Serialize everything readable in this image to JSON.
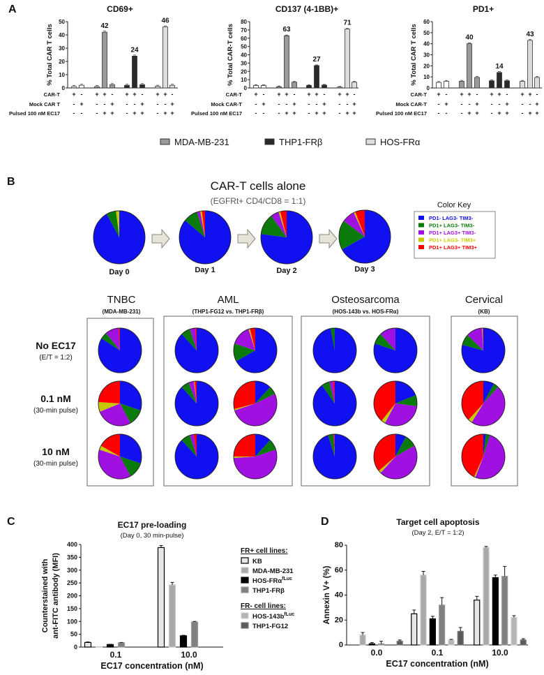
{
  "panel_labels": {
    "a": "A",
    "b": "B",
    "c": "C",
    "d": "D"
  },
  "colors": {
    "ctrl": "#ffffff",
    "mda": "#9a9a9a",
    "thp1": "#2a2a2a",
    "hos": "#dcdcdc",
    "pie": [
      "#1010f0",
      "#0a7a0a",
      "#a010e0",
      "#c8c800",
      "#ff0000"
    ]
  },
  "legend_a": [
    {
      "label": "MDA-MB-231",
      "cat": "mda"
    },
    {
      "label": "THP1-FRβ",
      "cat": "thp1"
    },
    {
      "label": "HOS-FRα",
      "cat": "hos"
    }
  ],
  "panel_b": {
    "title": "CAR-T cells alone",
    "subtitle": "(EGFRt+ CD4/CD8 = 1:1)",
    "days": [
      {
        "label": "Day 0",
        "fractions": [
          0.92,
          0.06,
          0.0,
          0.02,
          0.0
        ]
      },
      {
        "label": "Day 1",
        "fractions": [
          0.86,
          0.09,
          0.02,
          0.01,
          0.02
        ]
      },
      {
        "label": "Day 2",
        "fractions": [
          0.77,
          0.13,
          0.05,
          0.01,
          0.04
        ]
      },
      {
        "label": "Day 3",
        "fractions": [
          0.67,
          0.18,
          0.08,
          0.01,
          0.06
        ]
      }
    ],
    "color_key": {
      "title": "Color Key",
      "items": [
        "PD1- LAG3- TIM3-",
        "PD1+ LAG3- TIM3-",
        "PD1+ LAG3+ TIM3-",
        "PD1+ LAG3- TIM3+",
        "PD1+ LAG3+ TIM3+"
      ]
    },
    "groups": [
      {
        "title": "TNBC",
        "sub": "(MDA-MB-231)"
      },
      {
        "title": "AML",
        "sub": "(THP1-FG12   vs.   THP1-FRβ)"
      },
      {
        "title": "Osteosarcoma",
        "sub": "(HOS-143b   vs.   HOS-FRα)"
      },
      {
        "title": "Cervical",
        "sub": "(KB)"
      }
    ],
    "conditions": [
      {
        "label": "No EC17",
        "sub": "(E/T = 1:2)"
      },
      {
        "label": "0.1 nM",
        "sub": "(30-min pulse)"
      },
      {
        "label": "10 nM",
        "sub": "(30-min pulse)"
      }
    ],
    "pies": [
      [
        [
          0.84,
          0.05,
          0.1,
          0.0,
          0.01
        ],
        [
          0.88,
          0.07,
          0.04,
          0.0,
          0.01
        ],
        [
          0.67,
          0.13,
          0.15,
          0.01,
          0.04
        ],
        [
          0.97,
          0.03,
          0.0,
          0.0,
          0.0
        ],
        [
          0.8,
          0.08,
          0.12,
          0.0,
          0.0
        ],
        [
          0.79,
          0.08,
          0.12,
          0.005,
          0.005
        ]
      ],
      [
        [
          0.3,
          0.12,
          0.27,
          0.07,
          0.24
        ],
        [
          0.88,
          0.06,
          0.04,
          0.005,
          0.015
        ],
        [
          0.12,
          0.06,
          0.52,
          0.01,
          0.29
        ],
        [
          0.9,
          0.06,
          0.03,
          0.0,
          0.01
        ],
        [
          0.19,
          0.08,
          0.31,
          0.03,
          0.39
        ],
        [
          0.08,
          0.04,
          0.47,
          0.03,
          0.38
        ]
      ],
      [
        [
          0.3,
          0.12,
          0.38,
          0.03,
          0.17
        ],
        [
          0.88,
          0.07,
          0.03,
          0.0,
          0.02
        ],
        [
          0.12,
          0.08,
          0.54,
          0.01,
          0.25
        ],
        [
          0.95,
          0.04,
          0.005,
          0.0,
          0.005
        ],
        [
          0.08,
          0.09,
          0.45,
          0.02,
          0.36
        ],
        [
          0.02,
          0.03,
          0.51,
          0.01,
          0.43
        ]
      ]
    ]
  },
  "chart_data": [
    {
      "type": "bar",
      "title": "CD69+",
      "ylabel": "% Total CAR T cells",
      "ylim": [
        0,
        50
      ],
      "yticks": [
        "0",
        "10",
        "20",
        "30",
        "40",
        "50"
      ],
      "cats": [
        "ctrl",
        "ctrl",
        "mda",
        "mda",
        "mda",
        "thp1",
        "thp1",
        "thp1",
        "hos",
        "hos",
        "hos"
      ],
      "values": [
        1,
        2,
        1,
        42,
        2.5,
        2,
        24,
        2.5,
        1.2,
        46,
        2
      ],
      "data_labels": [
        null,
        null,
        null,
        "42",
        null,
        null,
        "24",
        null,
        null,
        "46",
        null
      ],
      "rows": [
        {
          "label": "CAR-T",
          "signs": [
            "+",
            "-",
            "+",
            "+",
            "-",
            "+",
            "+",
            "-",
            "+",
            "+",
            "-"
          ]
        },
        {
          "label": "Mock CAR T",
          "signs": [
            "-",
            "+",
            "-",
            "-",
            "+",
            "-",
            "-",
            "+",
            "-",
            "-",
            "+"
          ]
        },
        {
          "label": "Pulsed 100 nM EC17",
          "signs": [
            "-",
            "-",
            "-",
            "+",
            "+",
            "-",
            "+",
            "+",
            "-",
            "+",
            "+"
          ]
        }
      ]
    },
    {
      "type": "bar",
      "title": "CD137 (4-1BB)+",
      "ylabel": "% Total CAR-T cells",
      "ylim": [
        0,
        80
      ],
      "yticks": [
        "0",
        "10",
        "20",
        "30",
        "40",
        "50",
        "60",
        "70",
        "80"
      ],
      "cats": [
        "ctrl",
        "ctrl",
        "mda",
        "mda",
        "mda",
        "thp1",
        "thp1",
        "thp1",
        "hos",
        "hos",
        "hos"
      ],
      "values": [
        3,
        3,
        1.5,
        63,
        7,
        3,
        27,
        3.5,
        1,
        71,
        7
      ],
      "data_labels": [
        null,
        null,
        null,
        "63",
        null,
        null,
        "27",
        null,
        null,
        "71",
        null
      ],
      "rows": [
        {
          "label": "CAR-T",
          "signs": [
            "+",
            "-",
            "+",
            "+",
            "-",
            "+",
            "+",
            "-",
            "+",
            "+",
            "-"
          ]
        },
        {
          "label": "Mock CAR-T",
          "signs": [
            "-",
            "+",
            "-",
            "-",
            "+",
            "-",
            "-",
            "+",
            "-",
            "-",
            "+"
          ]
        },
        {
          "label": "Pulsed 100 nM EC17",
          "signs": [
            "-",
            "-",
            "-",
            "+",
            "+",
            "-",
            "+",
            "+",
            "-",
            "+",
            "+"
          ]
        }
      ]
    },
    {
      "type": "bar",
      "title": "PD1+",
      "ylabel": "% Total CAR T cells",
      "ylim": [
        0,
        60
      ],
      "yticks": [
        "0",
        "10",
        "20",
        "30",
        "40",
        "50",
        "60"
      ],
      "cats": [
        "ctrl",
        "ctrl",
        "mda",
        "mda",
        "mda",
        "thp1",
        "thp1",
        "thp1",
        "hos",
        "hos",
        "hos"
      ],
      "values": [
        5,
        6,
        6,
        40,
        9.5,
        6.5,
        14,
        6.5,
        6,
        43,
        9.5
      ],
      "data_labels": [
        null,
        null,
        null,
        "40",
        null,
        null,
        "14",
        null,
        null,
        "43",
        null
      ],
      "rows": [
        {
          "label": "CAR-T",
          "signs": [
            "+",
            "-",
            "+",
            "+",
            "-",
            "+",
            "+",
            "-",
            "+",
            "+",
            "-"
          ]
        },
        {
          "label": "Mock CAR-T",
          "signs": [
            "-",
            "+",
            "-",
            "-",
            "+",
            "-",
            "-",
            "+",
            "-",
            "-",
            "+"
          ]
        },
        {
          "label": "Pulsed 100 nM EC17",
          "signs": [
            "-",
            "-",
            "-",
            "+",
            "+",
            "-",
            "+",
            "+",
            "-",
            "+",
            "+"
          ]
        }
      ]
    },
    {
      "type": "bar",
      "title": "EC17 pre-loading",
      "subtitle": "(Day 0, 30 min-pulse)",
      "ylabel": [
        "Counterstained with",
        "ant-FITC antibody (MFI)"
      ],
      "xlabel": "EC17 concentration (nM)",
      "categories": [
        "0.1",
        "10.0"
      ],
      "ylim": [
        0,
        400
      ],
      "yticks": [
        "0",
        "50",
        "100",
        "150",
        "200",
        "250",
        "300",
        "350",
        "400"
      ],
      "series": [
        {
          "name": "KB",
          "sup": "",
          "fill": "#e6e6e6",
          "stroke": "#000000",
          "values": [
            18,
            388
          ],
          "err": [
            2,
            8
          ]
        },
        {
          "name": "MDA-MB-231",
          "sup": "",
          "fill": "#a9a9a9",
          "stroke": "#c8c8c8",
          "values": [
            1,
            242
          ],
          "err": [
            0,
            10
          ]
        },
        {
          "name": "HOS-FRα",
          "sup": "fLuc",
          "fill": "#000000",
          "stroke": "#000000",
          "values": [
            10,
            44
          ],
          "err": [
            1,
            2
          ]
        },
        {
          "name": "THP1-FRβ",
          "sup": "",
          "fill": "#808080",
          "stroke": "#9a9a9a",
          "values": [
            17,
            98
          ],
          "err": [
            1,
            2
          ]
        },
        {
          "name": "HOS-143b",
          "sup": "fLuc",
          "fill": "#b4b4b4",
          "stroke": "#d0d0d0",
          "values": [
            0,
            0
          ],
          "err": [
            0,
            0
          ]
        },
        {
          "name": "THP1-FG12",
          "sup": "",
          "fill": "#5a5a5a",
          "stroke": "#7a7a7a",
          "values": [
            0,
            0
          ],
          "err": [
            0,
            0
          ]
        }
      ],
      "legend_groups": [
        {
          "title": "FR+ cell lines:",
          "series": [
            0,
            1,
            2,
            3
          ]
        },
        {
          "title": "FR- cell lines:",
          "series": [
            4,
            5
          ]
        }
      ]
    },
    {
      "type": "bar",
      "title": "Target cell apoptosis",
      "subtitle": "(Day 2, E/T = 1:2)",
      "ylabel": "Annexin V+ (%)",
      "xlabel": "EC17 concentration (nM)",
      "categories": [
        "0.0",
        "0.1",
        "10.0"
      ],
      "ylim": [
        0,
        80
      ],
      "yticks": [
        "0",
        "20",
        "40",
        "60",
        "80"
      ],
      "series": [
        {
          "fill": "#e6e6e6",
          "stroke": "#000000",
          "values": [
            0,
            25,
            36
          ],
          "err": [
            0,
            3,
            3
          ]
        },
        {
          "fill": "#a9a9a9",
          "stroke": "#c8c8c8",
          "values": [
            8,
            56,
            78
          ],
          "err": [
            2,
            3,
            1
          ]
        },
        {
          "fill": "#000000",
          "stroke": "#000000",
          "values": [
            1,
            21,
            54
          ],
          "err": [
            1,
            2,
            2
          ]
        },
        {
          "fill": "#808080",
          "stroke": "#9a9a9a",
          "values": [
            1,
            32,
            55
          ],
          "err": [
            2,
            6,
            8
          ]
        },
        {
          "fill": "#b4b4b4",
          "stroke": "#d0d0d0",
          "values": [
            0,
            4,
            22
          ],
          "err": [
            0,
            0.5,
            1.5
          ]
        },
        {
          "fill": "#5a5a5a",
          "stroke": "#7a7a7a",
          "values": [
            3,
            11,
            4
          ],
          "err": [
            1,
            3,
            1
          ]
        }
      ]
    }
  ]
}
